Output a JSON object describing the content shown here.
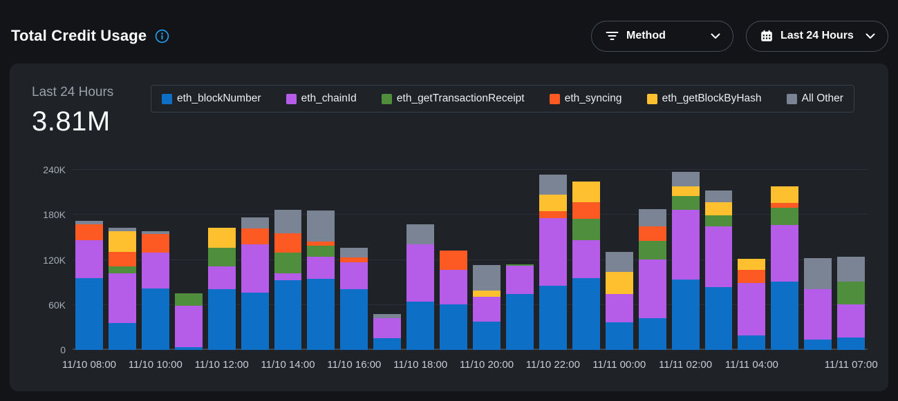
{
  "header": {
    "title": "Total Credit Usage",
    "method_filter": {
      "label": "Method"
    },
    "time_range": {
      "label": "Last 24 Hours"
    }
  },
  "summary": {
    "period_label": "Last 24 Hours",
    "total": "3.81M"
  },
  "colors": {
    "page_background": "#121417",
    "card_background": "#1f2226",
    "info_accent": "#2499e8",
    "gridline": "#2c3036"
  },
  "chart_data": {
    "type": "bar",
    "stacked": true,
    "title": "Total Credit Usage",
    "values_unit": "thousands of credits",
    "ymax": 240,
    "ylim": [
      0,
      240
    ],
    "ytick_values": [
      0,
      60,
      120,
      180,
      240
    ],
    "ytick_labels": [
      "0",
      "60K",
      "120K",
      "180K",
      "240K"
    ],
    "grid": "horizontal",
    "legend_position": "top",
    "bar_count": 24,
    "x_ticks": [
      {
        "index": 0,
        "label": "11/10 08:00"
      },
      {
        "index": 2,
        "label": "11/10 10:00"
      },
      {
        "index": 4,
        "label": "11/10 12:00"
      },
      {
        "index": 6,
        "label": "11/10 14:00"
      },
      {
        "index": 8,
        "label": "11/10 16:00"
      },
      {
        "index": 10,
        "label": "11/10 18:00"
      },
      {
        "index": 12,
        "label": "11/10 20:00"
      },
      {
        "index": 14,
        "label": "11/10 22:00"
      },
      {
        "index": 16,
        "label": "11/11 00:00"
      },
      {
        "index": 18,
        "label": "11/11 02:00"
      },
      {
        "index": 20,
        "label": "11/11 04:00"
      },
      {
        "index": 23,
        "label": "11/11 07:00"
      }
    ],
    "series": [
      {
        "name": "eth_blockNumber",
        "color": "#0e6fc6",
        "values": [
          96,
          35.5,
          82,
          4,
          81,
          76,
          93,
          95,
          81,
          16,
          64,
          61,
          38,
          74.5,
          85.5,
          96,
          36.5,
          42.5,
          94,
          84,
          19,
          91,
          14,
          17
        ]
      },
      {
        "name": "eth_chainId",
        "color": "#b55ce8",
        "values": [
          50,
          67,
          48,
          55,
          30,
          65,
          9,
          29,
          36,
          26,
          77,
          46,
          33,
          37.5,
          90,
          50,
          38,
          78,
          93,
          81,
          70,
          75,
          67,
          44
        ]
      },
      {
        "name": "eth_getTransactionReceipt",
        "color": "#4f8e3d",
        "values": [
          0,
          8.5,
          0,
          16,
          25,
          0,
          27.5,
          15,
          0,
          0,
          0,
          0,
          0,
          2,
          0,
          29,
          0,
          24.5,
          18,
          14,
          0,
          23,
          0,
          30
        ]
      },
      {
        "name": "eth_syncing",
        "color": "#fd5a23",
        "values": [
          21,
          20,
          24.5,
          0,
          0,
          21,
          25.5,
          5,
          6,
          0,
          0,
          25,
          0,
          0,
          9.5,
          22,
          0,
          20,
          0,
          0,
          18,
          7,
          0,
          0
        ]
      },
      {
        "name": "eth_getBlockByHash",
        "color": "#fec02e",
        "values": [
          0,
          27.5,
          0,
          0,
          27,
          0,
          0,
          0,
          0,
          0,
          0,
          0,
          8,
          0,
          22,
          27,
          29,
          0,
          13,
          18,
          14,
          22,
          0,
          0
        ]
      },
      {
        "name": "All Other",
        "color": "#7b8494",
        "values": [
          5,
          4.5,
          3.5,
          0,
          0,
          14.5,
          32,
          42,
          13.5,
          6,
          26,
          0,
          34.5,
          0,
          27,
          0,
          27.5,
          23,
          19,
          15,
          0,
          0,
          41,
          33
        ]
      }
    ]
  }
}
